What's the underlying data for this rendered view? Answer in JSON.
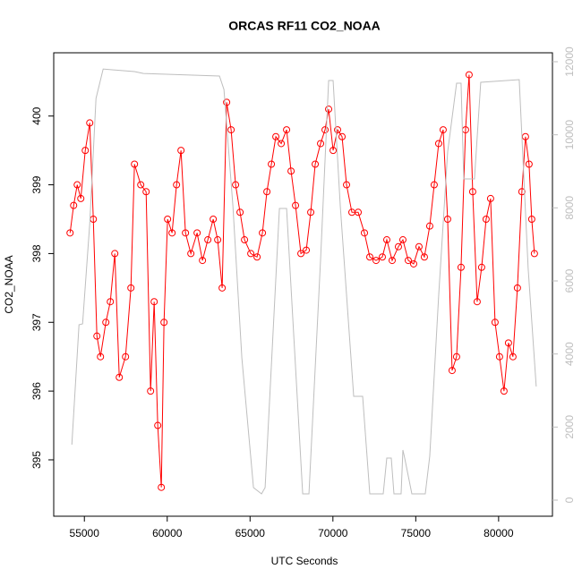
{
  "chart_data": {
    "type": "line",
    "title": "ORCAS RF11 CO2_NOAA",
    "x_label": "UTC Seconds",
    "y_label": "CO2_NOAA",
    "xlim": [
      53150,
      83250
    ],
    "ylim": [
      394.18,
      400.92
    ],
    "y2lim": [
      -441,
      12245
    ],
    "xticks": [
      55000,
      60000,
      65000,
      70000,
      75000,
      80000
    ],
    "yticks": [
      395,
      396,
      397,
      398,
      399,
      400
    ],
    "y2ticks": [
      0,
      2000,
      4000,
      6000,
      8000,
      10000,
      12000
    ],
    "series": [
      {
        "color": "#ff0000",
        "markers": true,
        "x": [
          54136,
          54352,
          54568,
          54784,
          55054,
          55324,
          55540,
          55756,
          55972,
          56296,
          56566,
          56836,
          57106,
          57484,
          57808,
          58024,
          58402,
          58726,
          58996,
          59212,
          59428,
          59644,
          59806,
          60022,
          60292,
          60562,
          60832,
          61102,
          61426,
          61804,
          62128,
          62452,
          62776,
          63046,
          63316,
          63586,
          63856,
          64126,
          64396,
          64666,
          65044,
          65422,
          65746,
          66016,
          66286,
          66556,
          66880,
          67204,
          67474,
          67744,
          68068,
          68392,
          68662,
          68932,
          69256,
          69526,
          69742,
          70012,
          70282,
          70552,
          70822,
          71146,
          71524,
          71902,
          72226,
          72604,
          72982,
          73252,
          73576,
          73954,
          74224,
          74548,
          74872,
          75196,
          75520,
          75844,
          76114,
          76384,
          76654,
          76924,
          77194,
          77464,
          77734,
          78004,
          78220,
          78436,
          78706,
          78976,
          79246,
          79516,
          79786,
          80056,
          80326,
          80596,
          80866,
          81136,
          81406,
          81622,
          81838,
          82000,
          82162
        ],
        "values": [
          398.3,
          398.7,
          399.0,
          398.8,
          399.5,
          399.9,
          398.5,
          396.8,
          396.5,
          397.0,
          397.3,
          398.0,
          396.2,
          396.5,
          397.5,
          399.3,
          399.0,
          398.9,
          396.0,
          397.3,
          395.5,
          394.6,
          397.0,
          398.5,
          398.3,
          399.0,
          399.5,
          398.3,
          398.0,
          398.3,
          397.9,
          398.2,
          398.5,
          398.2,
          397.5,
          400.2,
          399.8,
          399.0,
          398.6,
          398.2,
          398.0,
          397.95,
          398.3,
          398.9,
          399.3,
          399.7,
          399.6,
          399.8,
          399.2,
          398.7,
          398.0,
          398.05,
          398.6,
          399.3,
          399.6,
          399.8,
          400.1,
          399.5,
          399.8,
          399.7,
          399.0,
          398.6,
          398.6,
          398.3,
          397.95,
          397.9,
          397.95,
          398.2,
          397.9,
          398.1,
          398.2,
          397.9,
          397.85,
          398.1,
          397.95,
          398.4,
          399.0,
          399.6,
          399.8,
          398.5,
          396.3,
          396.5,
          397.8,
          399.8,
          400.6,
          398.9,
          397.3,
          397.8,
          398.5,
          398.8,
          397.0,
          396.5,
          396.0,
          396.7,
          396.5,
          397.5,
          398.9,
          399.7,
          399.3,
          398.5,
          398.0
        ]
      },
      {
        "color": "#bebebe",
        "markers": false,
        "axis": "y2",
        "x": [
          54244,
          54676,
          54892,
          55324,
          55702,
          56134,
          58024,
          58564,
          63154,
          63424,
          63964,
          64504,
          65206,
          65692,
          65908,
          66772,
          67204,
          68176,
          68554,
          69256,
          69742,
          70012,
          70444,
          71254,
          71794,
          72226,
          73036,
          73252,
          73522,
          73684,
          74116,
          74224,
          74332,
          74764,
          75574,
          75844,
          76384,
          76924,
          77464,
          77734,
          77896,
          78544,
          78922,
          81244,
          81784,
          82270
        ],
        "values": [
          1518,
          4800,
          4825,
          7567,
          10996,
          11800,
          11730,
          11680,
          11608,
          11240,
          8057,
          3894,
          343,
          171,
          343,
          7984,
          7984,
          171,
          171,
          6588,
          11486,
          11486,
          8057,
          2841,
          2841,
          171,
          171,
          1151,
          1151,
          171,
          171,
          1371,
          1151,
          171,
          171,
          1200,
          5608,
          9527,
          11412,
          11412,
          8792,
          8792,
          11437,
          11510,
          6343,
          3110
        ]
      }
    ]
  }
}
